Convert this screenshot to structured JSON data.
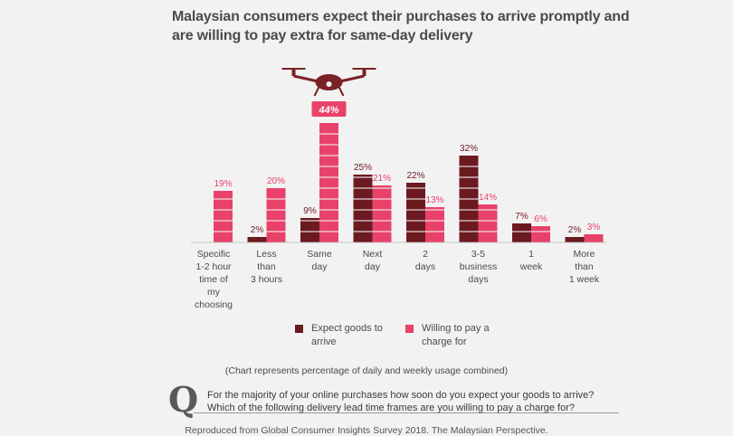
{
  "title": {
    "line1": "Malaysian consumers expect their purchases to arrive promptly and",
    "line2": "are willing to pay extra for same-day delivery"
  },
  "chart_data": {
    "type": "bar",
    "categories": [
      [
        "Specific",
        "1-2 hour",
        "time of",
        "my",
        "choosing"
      ],
      [
        "Less",
        "than",
        "3 hours"
      ],
      [
        "Same",
        "day"
      ],
      [
        "Next",
        "day"
      ],
      [
        "2",
        "days"
      ],
      [
        "3-5",
        "business",
        "days"
      ],
      [
        "1",
        "week"
      ],
      [
        "More",
        "than",
        "1 week"
      ]
    ],
    "series": [
      {
        "name": "Expect goods to arrive",
        "values": [
          null,
          2,
          9,
          25,
          22,
          32,
          7,
          2
        ],
        "labels": [
          "",
          "2%",
          "9%",
          "25%",
          "22%",
          "32%",
          "7%",
          "2%"
        ],
        "color": "#6b1a1f"
      },
      {
        "name": "Willing to pay a charge for",
        "values": [
          19,
          20,
          44,
          21,
          13,
          14,
          6,
          3
        ],
        "labels": [
          "19%",
          "20%",
          "44%",
          "21%",
          "13%",
          "14%",
          "6%",
          "3%"
        ],
        "color": "#e8426a"
      }
    ],
    "highlight_label_color": "#ffffff",
    "ylim": [
      0,
      44
    ],
    "grid": false
  },
  "legend": {
    "expect_label": "Expect goods to arrive",
    "willing_label": "Willing to pay a charge for",
    "expect_color": "#6b1a1f",
    "willing_color": "#e8426a"
  },
  "footnote": "(Chart represents percentage of daily and weekly usage combined)",
  "question": {
    "mark": "Q",
    "line1": "For the majority of your online purchases how soon do you expect your goods to arrive?",
    "line2": "Which of the following delivery lead time frames are you willing to pay a charge for?"
  },
  "source": "Reproduced from Global Consumer Insights Survey 2018. The Malaysian Perspective.",
  "icons": {
    "drone": "drone-icon"
  }
}
